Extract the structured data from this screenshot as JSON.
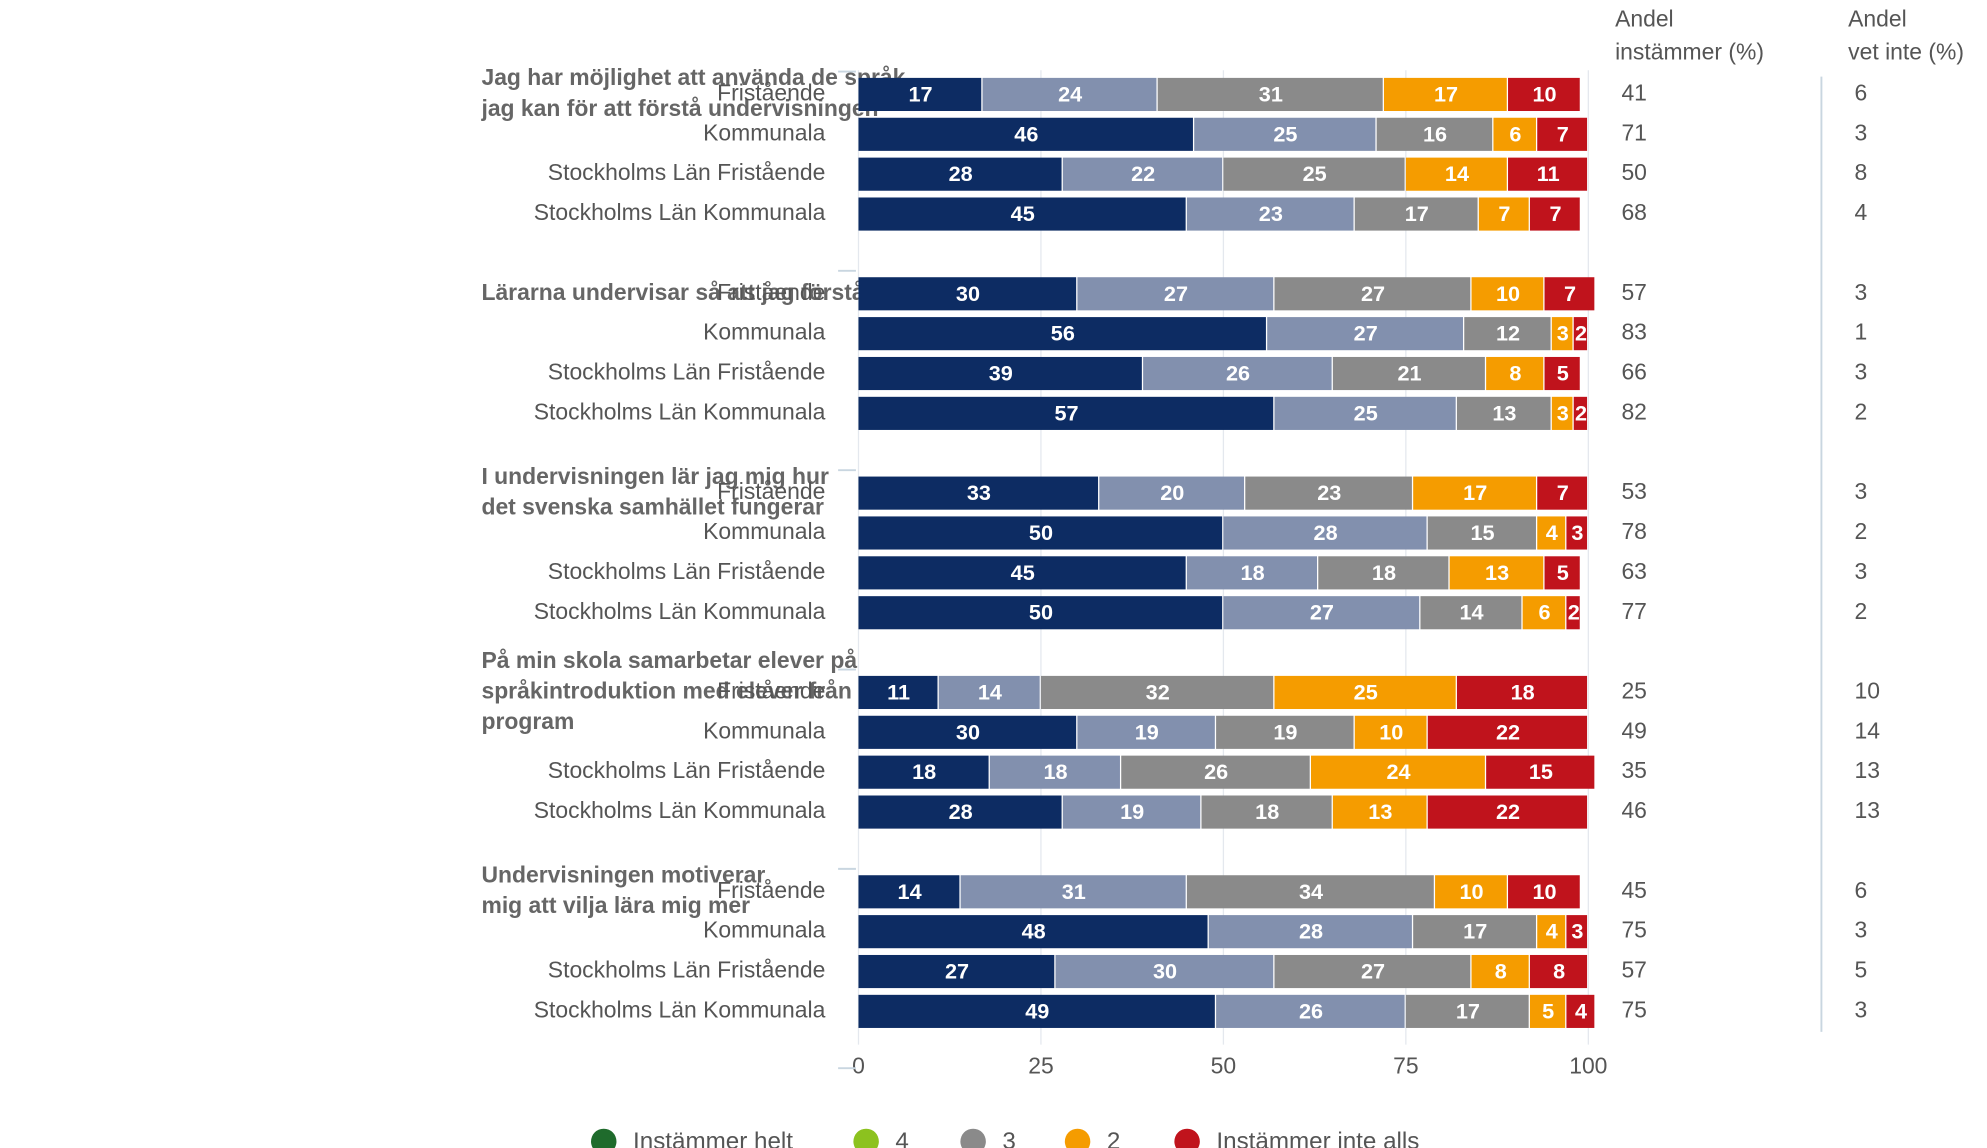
{
  "chart_data": {
    "type": "stacked-bar-h",
    "xlim": [
      0,
      100
    ],
    "xticks": [
      0,
      25,
      50,
      75,
      100
    ],
    "grid": true,
    "column_headers": [
      [
        "Andel",
        "instämmer (%)"
      ],
      [
        "Andel",
        "vet inte (%)"
      ]
    ],
    "series": [
      {
        "name": "Instämmer helt",
        "color": "#0d2c63",
        "legend_color": "#1f6b2c"
      },
      {
        "name": "4",
        "color": "#8290ae",
        "legend_color": "#8cc21f"
      },
      {
        "name": "3",
        "color": "#8a8a8a",
        "legend_color": "#8a8a8a"
      },
      {
        "name": "2",
        "color": "#f59c00",
        "legend_color": "#f59c00"
      },
      {
        "name": "Instämmer inte alls",
        "color": "#c0131c",
        "legend_color": "#c0131c"
      }
    ],
    "questions": [
      {
        "label": [
          "Jag har möjlighet att använda de språk",
          "jag kan för att förstå undervisningen"
        ],
        "groups": [
          {
            "name": "Fristående",
            "values": [
              17,
              24,
              31,
              17,
              10
            ],
            "agree": 41,
            "dont_know": 6
          },
          {
            "name": "Kommunala",
            "values": [
              46,
              25,
              16,
              6,
              7
            ],
            "agree": 71,
            "dont_know": 3
          },
          {
            "name": "Stockholms Län Fristående",
            "values": [
              28,
              22,
              25,
              14,
              11
            ],
            "agree": 50,
            "dont_know": 8
          },
          {
            "name": "Stockholms Län Kommunala",
            "values": [
              45,
              23,
              17,
              7,
              7
            ],
            "agree": 68,
            "dont_know": 4
          }
        ]
      },
      {
        "label": [
          "Lärarna undervisar så att jag förstår"
        ],
        "groups": [
          {
            "name": "Fristående",
            "values": [
              30,
              27,
              27,
              10,
              7
            ],
            "agree": 57,
            "dont_know": 3
          },
          {
            "name": "Kommunala",
            "values": [
              56,
              27,
              12,
              3,
              2
            ],
            "agree": 83,
            "dont_know": 1
          },
          {
            "name": "Stockholms Län Fristående",
            "values": [
              39,
              26,
              21,
              8,
              5
            ],
            "agree": 66,
            "dont_know": 3
          },
          {
            "name": "Stockholms Län Kommunala",
            "values": [
              57,
              25,
              13,
              3,
              2
            ],
            "agree": 82,
            "dont_know": 2
          }
        ]
      },
      {
        "label": [
          "I undervisningen lär jag mig hur",
          "det svenska samhället fungerar"
        ],
        "groups": [
          {
            "name": "Fristående",
            "values": [
              33,
              20,
              23,
              17,
              7
            ],
            "agree": 53,
            "dont_know": 3
          },
          {
            "name": "Kommunala",
            "values": [
              50,
              28,
              15,
              4,
              3
            ],
            "agree": 78,
            "dont_know": 2
          },
          {
            "name": "Stockholms Län Fristående",
            "values": [
              45,
              18,
              18,
              13,
              5
            ],
            "agree": 63,
            "dont_know": 3
          },
          {
            "name": "Stockholms Län Kommunala",
            "values": [
              50,
              27,
              14,
              6,
              2
            ],
            "agree": 77,
            "dont_know": 2
          }
        ]
      },
      {
        "label": [
          "På min skola samarbetar elever på",
          "språkintroduktion med elever från andra",
          "program"
        ],
        "groups": [
          {
            "name": "Fristående",
            "values": [
              11,
              14,
              32,
              25,
              18
            ],
            "agree": 25,
            "dont_know": 10
          },
          {
            "name": "Kommunala",
            "values": [
              30,
              19,
              19,
              10,
              22
            ],
            "agree": 49,
            "dont_know": 14
          },
          {
            "name": "Stockholms Län Fristående",
            "values": [
              18,
              18,
              26,
              24,
              15
            ],
            "agree": 35,
            "dont_know": 13
          },
          {
            "name": "Stockholms Län Kommunala",
            "values": [
              28,
              19,
              18,
              13,
              22
            ],
            "agree": 46,
            "dont_know": 13
          }
        ]
      },
      {
        "label": [
          "Undervisningen motiverar",
          "mig att vilja lära mig mer"
        ],
        "groups": [
          {
            "name": "Fristående",
            "values": [
              14,
              31,
              34,
              10,
              10
            ],
            "agree": 45,
            "dont_know": 6
          },
          {
            "name": "Kommunala",
            "values": [
              48,
              28,
              17,
              4,
              3
            ],
            "agree": 75,
            "dont_know": 3
          },
          {
            "name": "Stockholms Län Fristående",
            "values": [
              27,
              30,
              27,
              8,
              8
            ],
            "agree": 57,
            "dont_know": 5
          },
          {
            "name": "Stockholms Län Kommunala",
            "values": [
              49,
              26,
              17,
              5,
              4
            ],
            "agree": 75,
            "dont_know": 3
          }
        ]
      }
    ]
  }
}
